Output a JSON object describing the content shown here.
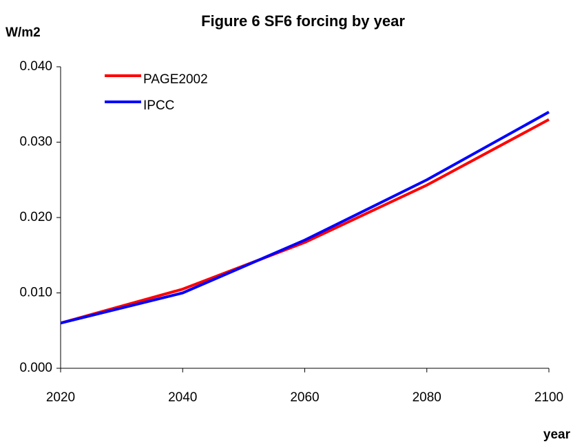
{
  "chart_data": {
    "type": "line",
    "title": "Figure 6 SF6 forcing by year",
    "ylabel": "W/m2",
    "xlabel": "year",
    "x": [
      2020,
      2040,
      2060,
      2080,
      2100
    ],
    "series": [
      {
        "name": "PAGE2002",
        "color": "#ff0000",
        "values": [
          0.006,
          0.0105,
          0.0167,
          0.0243,
          0.033
        ]
      },
      {
        "name": "IPCC",
        "color": "#0000ff",
        "values": [
          0.006,
          0.01,
          0.017,
          0.025,
          0.034
        ]
      }
    ],
    "xlim": [
      2020,
      2100
    ],
    "xticks": [
      2020,
      2040,
      2060,
      2080,
      2100
    ],
    "ylim": [
      0,
      0.04
    ],
    "yticks": [
      {
        "value": 0,
        "label": "0.000"
      },
      {
        "value": 0.01,
        "label": "0.010"
      },
      {
        "value": 0.02,
        "label": "0.020"
      },
      {
        "value": 0.03,
        "label": "0.030"
      },
      {
        "value": 0.04,
        "label": "0.040"
      }
    ],
    "grid": false
  }
}
